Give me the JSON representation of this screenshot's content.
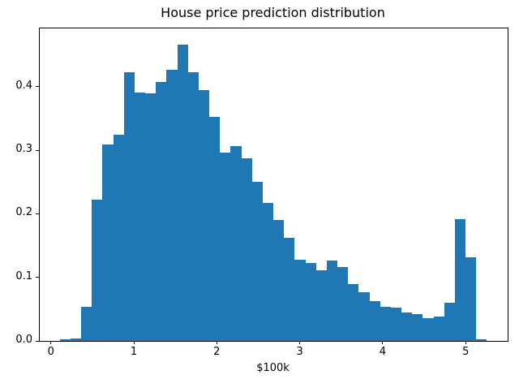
{
  "figure": {
    "title": "House price prediction distribution",
    "xlabel": "$100k"
  },
  "colors": {
    "bar": "#1f77b4",
    "spine": "#000000",
    "background": "#ffffff",
    "text": "#000000"
  },
  "chart_data": {
    "type": "bar",
    "subtype": "histogram",
    "title": "House price prediction distribution",
    "xlabel": "$100k",
    "ylabel": "",
    "bin_start": 0.108,
    "bin_width": 0.1287,
    "values": [
      0.002,
      0.004,
      0.054,
      0.222,
      0.309,
      0.324,
      0.423,
      0.391,
      0.389,
      0.407,
      0.427,
      0.466,
      0.423,
      0.394,
      0.352,
      0.296,
      0.306,
      0.287,
      0.25,
      0.217,
      0.19,
      0.162,
      0.128,
      0.123,
      0.111,
      0.126,
      0.116,
      0.089,
      0.077,
      0.063,
      0.054,
      0.052,
      0.045,
      0.042,
      0.036,
      0.038,
      0.06,
      0.192,
      0.131,
      0.003
    ],
    "x_tick_values": [
      0,
      1,
      2,
      3,
      4,
      5
    ],
    "x_tick_labels": [
      "0",
      "1",
      "2",
      "3",
      "4",
      "5"
    ],
    "y_tick_values": [
      0.0,
      0.1,
      0.2,
      0.3,
      0.4
    ],
    "y_tick_labels": [
      "0.0",
      "0.1",
      "0.2",
      "0.3",
      "0.4"
    ],
    "xlim": [
      -0.134,
      5.506
    ],
    "ylim": [
      0,
      0.4915
    ],
    "grid": false,
    "legend": null
  }
}
